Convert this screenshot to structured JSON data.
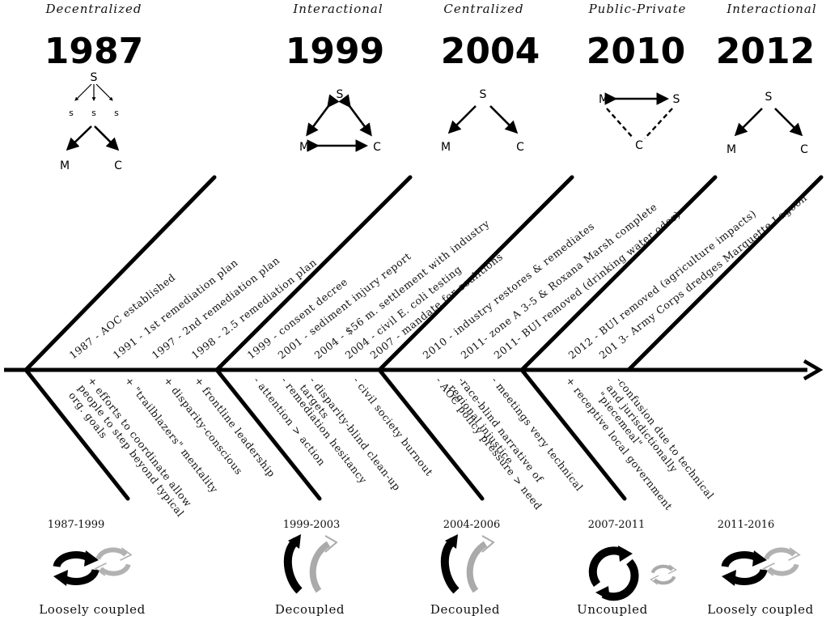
{
  "eras": [
    {
      "mode": "Decentralized",
      "year": "1987"
    },
    {
      "mode": "Interactional",
      "year": "1999"
    },
    {
      "mode": "Centralized",
      "year": "2004"
    },
    {
      "mode": "Public-Private",
      "year": "2010"
    },
    {
      "mode": "Interactional",
      "year": "2012"
    }
  ],
  "nodes": {
    "S": "S",
    "s": "s",
    "M": "M",
    "C": "C"
  },
  "events_top": [
    "1987 - AOC established",
    "1991 - 1st remediation plan",
    "1997 - 2nd remediation plan",
    "1998 - 2.5 remediation plan",
    "1999 - consent decree",
    "2001 - sediment injury report",
    "2004 - $56 m. settlement with industry",
    "2004 - civil E. coli testing",
    "2007 - mandate for coalitions",
    "2010 - industry restores & remediates",
    "2011- zone A 3-5 & Roxana Marsh complete",
    "2011- BUI removed (drinking water odor)",
    "2012 - BUI removed (agriculture impacts)",
    "201 3- Army Corps dredges Marquette Lagoon"
  ],
  "factors_bottom": [
    {
      "lines": [
        "+ efforts to coordinate allow",
        "people to step beyond typical",
        "org. goals"
      ]
    },
    {
      "lines": [
        "+ \"trailblazers\" mentality"
      ]
    },
    {
      "lines": [
        "+ disparity-conscious"
      ]
    },
    {
      "lines": [
        "+ frontline leadership"
      ]
    },
    {
      "lines": [
        "- attention > action"
      ]
    },
    {
      "lines": [
        "- remediation hesitancy"
      ]
    },
    {
      "lines": [
        "- disparity-blind clean-up",
        "targets"
      ]
    },
    {
      "lines": [
        "- civil society burnout"
      ]
    },
    {
      "lines": [
        "- AOC policy pressure > need"
      ]
    },
    {
      "lines": [
        "-race-blind narrative of",
        "regional injustice"
      ]
    },
    {
      "lines": [
        "- meetings very technical"
      ]
    },
    {
      "lines": [
        "+ receptive local government"
      ]
    },
    {
      "lines": [
        "-confusion due to technical",
        "and jurisdictionally",
        "\"piecemeal\""
      ]
    }
  ],
  "periods": [
    {
      "range": "1987-1999",
      "coupling": "Loosely coupled",
      "icon": "cycle-arrows-icon"
    },
    {
      "range": "1999-2003",
      "coupling": "Decoupled",
      "icon": "split-arrows-icon"
    },
    {
      "range": "2004-2006",
      "coupling": "Decoupled",
      "icon": "split-arrows-icon"
    },
    {
      "range": "2007-2011",
      "coupling": "Uncoupled",
      "icon": "cycle-arrows-icon"
    },
    {
      "range": "2011-2016",
      "coupling": "Loosely coupled",
      "icon": "cycle-arrows-icon"
    }
  ]
}
